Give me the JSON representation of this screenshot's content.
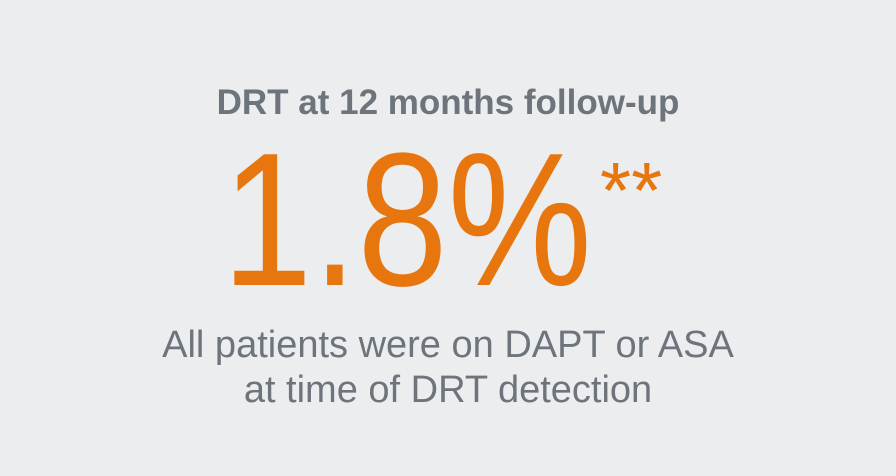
{
  "heading": "DRT at 12 months follow-up",
  "stat": {
    "value": "1.8%",
    "marker": "**"
  },
  "caption": [
    "All patients were on DAPT or ASA",
    "at time of DRT detection"
  ]
}
